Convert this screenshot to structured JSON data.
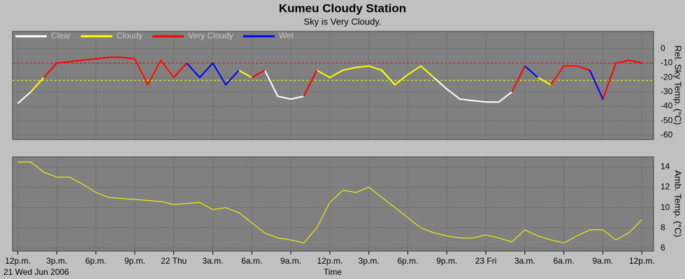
{
  "chart_data": [
    {
      "type": "line",
      "title": "Kumeu Cloudy Station",
      "subtitle": "Sky is Very Cloudy.",
      "ylabel": "Rel. Sky Temp. (°C)",
      "x": [
        0,
        1,
        2,
        3,
        4,
        5,
        6,
        7,
        8,
        9,
        10,
        11,
        12,
        13,
        14,
        15,
        16,
        17,
        18,
        19,
        20,
        21,
        22,
        23,
        24,
        25,
        26,
        27,
        28,
        29,
        30,
        31,
        32,
        33,
        34,
        35,
        36,
        37,
        38,
        39,
        40,
        41,
        42,
        43,
        44,
        45,
        46,
        47,
        48
      ],
      "series": [
        {
          "name": "Clear",
          "color": "#ffffff",
          "values": [
            -38,
            -30,
            null,
            null,
            null,
            null,
            null,
            null,
            null,
            null,
            null,
            null,
            null,
            null,
            null,
            null,
            null,
            null,
            null,
            -15,
            -33,
            -35,
            -33,
            null,
            null,
            null,
            null,
            null,
            -15,
            -25,
            null,
            null,
            -20,
            -28,
            -35,
            -36,
            -37,
            -37,
            -30,
            null,
            null,
            null,
            null,
            null,
            null,
            null,
            null,
            null,
            null
          ]
        },
        {
          "name": "Cloudy",
          "color": "#ffff00",
          "values": [
            null,
            -30,
            -20,
            null,
            null,
            null,
            null,
            null,
            null,
            -7,
            -25,
            -8,
            -20,
            null,
            null,
            null,
            null,
            -15,
            -20,
            null,
            null,
            null,
            null,
            -15,
            -20,
            -15,
            -13,
            -12,
            -15,
            -25,
            -18,
            -12,
            -20,
            null,
            null,
            null,
            null,
            null,
            null,
            null,
            -20,
            -25,
            -12,
            -12,
            null,
            null,
            null,
            null,
            null
          ]
        },
        {
          "name": "Very Cloudy",
          "color": "#ff0000",
          "values": [
            null,
            null,
            -20,
            -10,
            -9,
            -8,
            -7,
            -6,
            -6,
            -7,
            -25,
            -8,
            -20,
            -10,
            null,
            null,
            null,
            null,
            -20,
            -15,
            null,
            null,
            -33,
            -15,
            null,
            null,
            null,
            null,
            null,
            null,
            null,
            null,
            null,
            null,
            null,
            null,
            null,
            null,
            -30,
            -12,
            null,
            -25,
            -12,
            -12,
            -15,
            -35,
            -10,
            -8,
            -10
          ]
        },
        {
          "name": "Wet",
          "color": "#0000ff",
          "values": [
            null,
            null,
            null,
            null,
            null,
            null,
            null,
            null,
            null,
            null,
            null,
            null,
            null,
            -10,
            -20,
            -10,
            -25,
            -15,
            null,
            null,
            null,
            null,
            null,
            null,
            null,
            null,
            null,
            null,
            null,
            null,
            null,
            null,
            null,
            null,
            null,
            null,
            null,
            null,
            null,
            -12,
            -20,
            null,
            null,
            null,
            -15,
            -35,
            null,
            null,
            null
          ]
        }
      ],
      "reference_lines": [
        {
          "value": -10,
          "color": "#ff0000"
        },
        {
          "value": -22,
          "color": "#ffff00"
        }
      ],
      "xlim": [
        -0.4,
        48.9
      ],
      "ylim": [
        -63,
        12
      ],
      "yticks": [
        0,
        -10,
        -20,
        -30,
        -40,
        -50,
        -60
      ],
      "grid": true
    },
    {
      "type": "line",
      "ylabel": "Amb. Temp. (°C)",
      "xlabel": "Time",
      "date_label": "21 Wed Jun 2006",
      "x": [
        0,
        1,
        2,
        3,
        4,
        5,
        6,
        7,
        8,
        9,
        10,
        11,
        12,
        13,
        14,
        15,
        16,
        17,
        18,
        19,
        20,
        21,
        22,
        23,
        24,
        25,
        26,
        27,
        28,
        29,
        30,
        31,
        32,
        33,
        34,
        35,
        36,
        37,
        38,
        39,
        40,
        41,
        42,
        43,
        44,
        45,
        46,
        47,
        48
      ],
      "series": [
        {
          "color": "#ffff00",
          "values": [
            14.5,
            14.5,
            13.5,
            13,
            13,
            12.3,
            11.5,
            11,
            10.9,
            10.8,
            10.7,
            10.6,
            10.3,
            10.4,
            10.5,
            9.8,
            10,
            9.5,
            8.5,
            7.5,
            7,
            6.8,
            6.5,
            8,
            10.5,
            11.7,
            11.5,
            12,
            11,
            10,
            9,
            8,
            7.5,
            7.2,
            7,
            7,
            7.3,
            7,
            6.6,
            7.8,
            7.2,
            6.8,
            6.5,
            7.2,
            7.8,
            7.8,
            6.8,
            7.5,
            8.8
          ]
        }
      ],
      "xlim": [
        -0.4,
        48.9
      ],
      "ylim": [
        5.7,
        15
      ],
      "yticks": [
        14,
        12,
        10,
        8,
        6
      ],
      "xticks": [
        {
          "value": 0,
          "label": "12p.m."
        },
        {
          "value": 3,
          "label": "3p.m."
        },
        {
          "value": 6,
          "label": "6p.m."
        },
        {
          "value": 9,
          "label": "9p.m."
        },
        {
          "value": 12,
          "label": "22 Thu"
        },
        {
          "value": 15,
          "label": "3a.m."
        },
        {
          "value": 18,
          "label": "6a.m."
        },
        {
          "value": 21,
          "label": "9a.m."
        },
        {
          "value": 24,
          "label": "12p.m."
        },
        {
          "value": 27,
          "label": "3p.m."
        },
        {
          "value": 30,
          "label": "6p.m."
        },
        {
          "value": 33,
          "label": "9p.m."
        },
        {
          "value": 36,
          "label": "23 Fri"
        },
        {
          "value": 39,
          "label": "3a.m."
        },
        {
          "value": 42,
          "label": "6a.m."
        },
        {
          "value": 45,
          "label": "9a.m."
        },
        {
          "value": 48,
          "label": "12p.m."
        }
      ],
      "grid": true
    }
  ]
}
